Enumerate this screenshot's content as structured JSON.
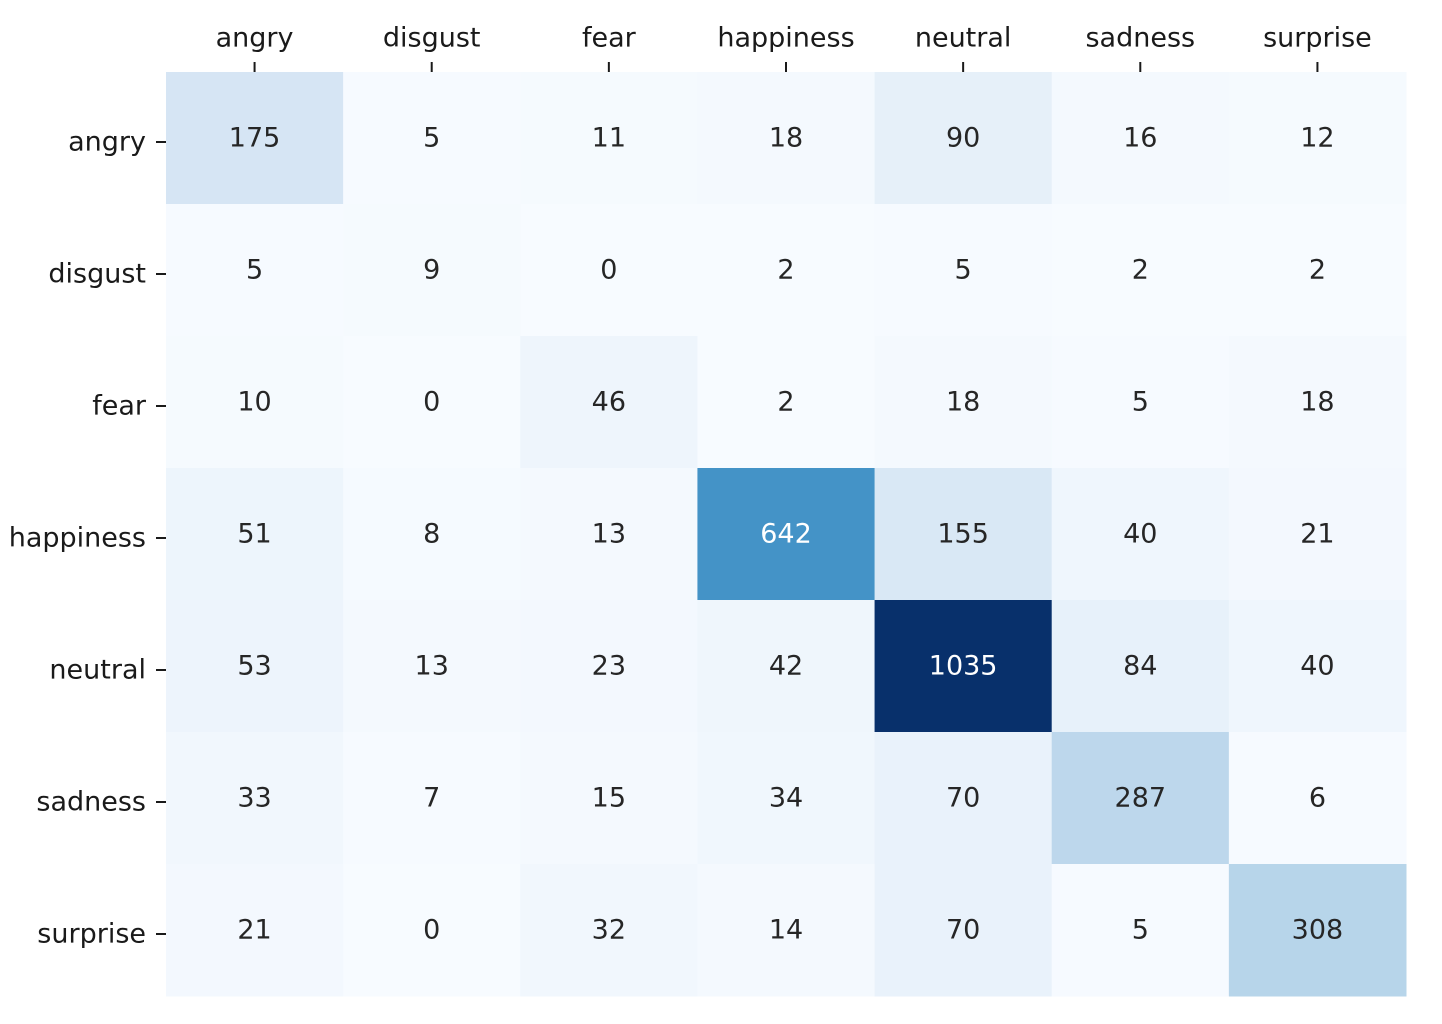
{
  "chart_data": {
    "type": "heatmap",
    "title": "",
    "xlabel": "",
    "ylabel": "",
    "x_tick_position": "top",
    "colormap": "Blues",
    "color_low": "#f7fbff",
    "color_high": "#08306b",
    "value_range": [
      0,
      1035
    ],
    "colorbar": false,
    "grid": false,
    "columns": [
      "angry",
      "disgust",
      "fear",
      "happiness",
      "neutral",
      "sadness",
      "surprise"
    ],
    "rows": [
      "angry",
      "disgust",
      "fear",
      "happiness",
      "neutral",
      "sadness",
      "surprise"
    ],
    "values": [
      [
        175,
        5,
        11,
        18,
        90,
        16,
        12
      ],
      [
        5,
        9,
        0,
        2,
        5,
        2,
        2
      ],
      [
        10,
        0,
        46,
        2,
        18,
        5,
        18
      ],
      [
        51,
        8,
        13,
        642,
        155,
        40,
        21
      ],
      [
        53,
        13,
        23,
        42,
        1035,
        84,
        40
      ],
      [
        33,
        7,
        15,
        34,
        70,
        287,
        6
      ],
      [
        21,
        0,
        32,
        14,
        70,
        5,
        308
      ]
    ]
  }
}
